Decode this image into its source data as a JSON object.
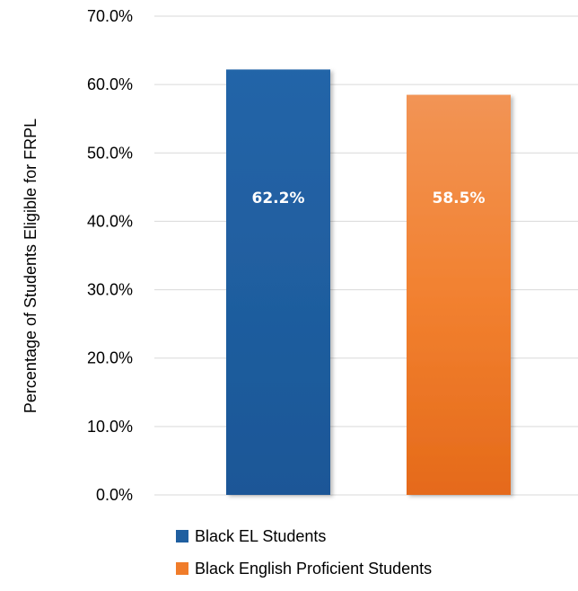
{
  "chart_data": {
    "type": "bar",
    "categories": [
      "Black EL Students",
      "Black English Proficient Students"
    ],
    "values": [
      62.2,
      58.5
    ],
    "data_labels": [
      "62.2%",
      "58.5%"
    ],
    "title": "",
    "xlabel": "",
    "ylabel": "Percentage of Students Eligible for FRPL",
    "ylim": [
      0,
      70
    ],
    "yticks": [
      "0.0%",
      "10.0%",
      "20.0%",
      "30.0%",
      "40.0%",
      "50.0%",
      "60.0%",
      "70.0%"
    ],
    "grid": true,
    "legend_position": "bottom",
    "legend": [
      "Black EL Students",
      "Black English Proficient Students"
    ],
    "colors": [
      "#1f5fa0",
      "#f07c2a"
    ]
  }
}
